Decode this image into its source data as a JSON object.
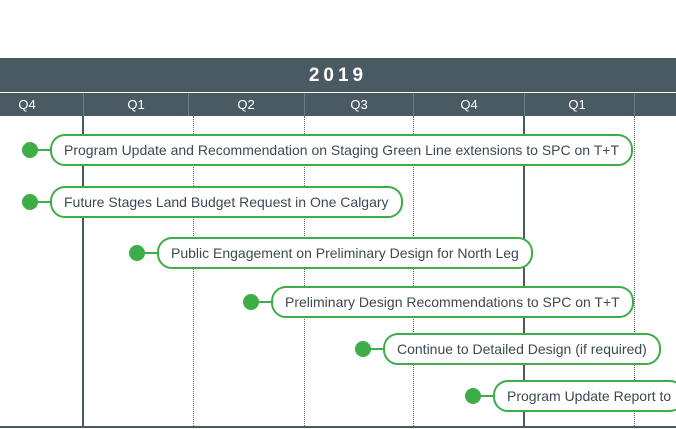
{
  "timeline": {
    "year": "2019",
    "quarters": [
      "Q4",
      "Q1",
      "Q2",
      "Q3",
      "Q4",
      "Q1"
    ],
    "accent_color": "#3ead48",
    "header_color": "#4a5a62"
  },
  "milestones": [
    {
      "label": "Program Update and Recommendation on Staging Green Line extensions to SPC on T+T"
    },
    {
      "label": "Future Stages Land Budget Request in One Calgary"
    },
    {
      "label": "Public Engagement on Preliminary Design for North Leg"
    },
    {
      "label": "Preliminary Design Recommendations to SPC on T+T"
    },
    {
      "label": "Continue to Detailed Design (if required)"
    },
    {
      "label": "Program Update Report to"
    }
  ]
}
